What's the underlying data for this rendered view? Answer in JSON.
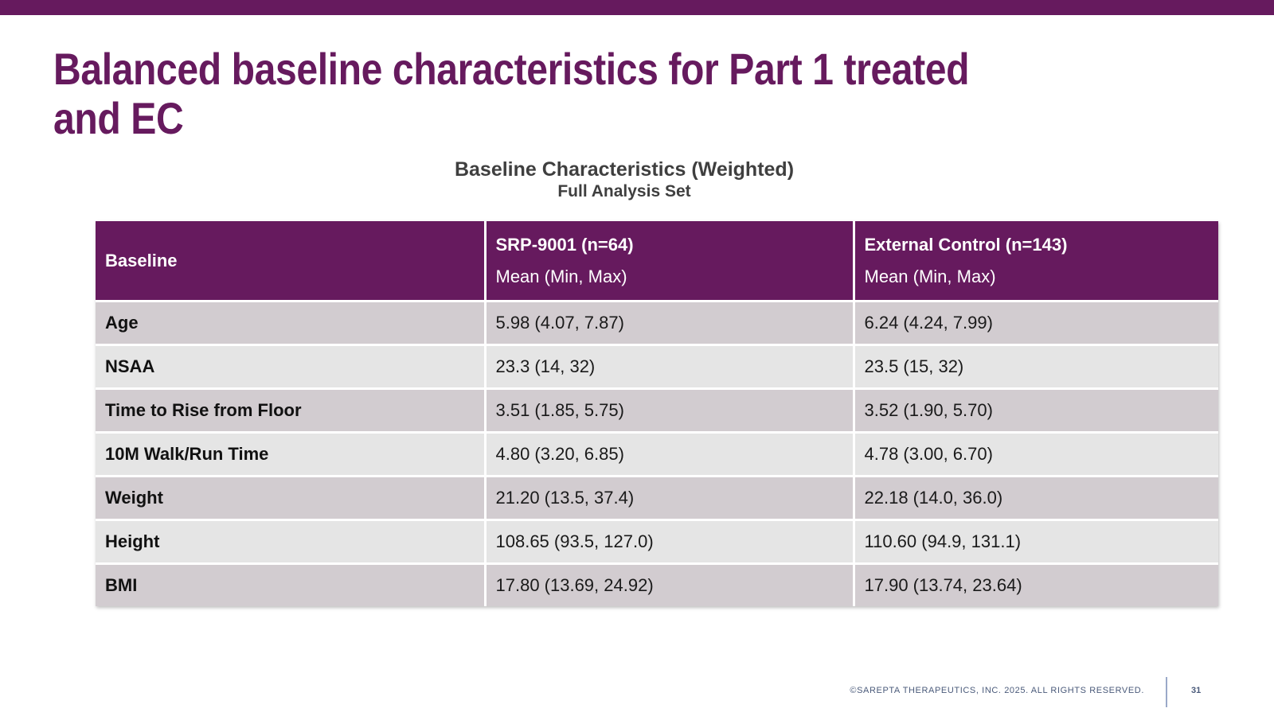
{
  "slide": {
    "title": "Balanced baseline characteristics for Part 1 treated and EC",
    "table_title": "Baseline Characteristics (Weighted)",
    "table_subtitle": "Full Analysis Set"
  },
  "colors": {
    "brand_purple": "#661a5e",
    "row_odd": "#d2ccd0",
    "row_even": "#e5e5e5"
  },
  "table": {
    "headers": {
      "col1": "Baseline",
      "col2_title": "SRP-9001 (n=64)",
      "col2_sub": "Mean (Min, Max)",
      "col3_title": "External Control (n=143)",
      "col3_sub": "Mean (Min, Max)"
    },
    "rows": [
      {
        "label": "Age",
        "srp": "5.98 (4.07, 7.87)",
        "ec": "6.24 (4.24, 7.99)"
      },
      {
        "label": "NSAA",
        "srp": "23.3 (14, 32)",
        "ec": "23.5 (15, 32)"
      },
      {
        "label": "Time to Rise from Floor",
        "srp": "3.51 (1.85, 5.75)",
        "ec": "3.52 (1.90, 5.70)"
      },
      {
        "label": "10M Walk/Run Time",
        "srp": "4.80 (3.20, 6.85)",
        "ec": "4.78 (3.00, 6.70)"
      },
      {
        "label": "Weight",
        "srp": "21.20 (13.5, 37.4)",
        "ec": "22.18 (14.0, 36.0)"
      },
      {
        "label": "Height",
        "srp": "108.65 (93.5, 127.0)",
        "ec": "110.60 (94.9, 131.1)"
      },
      {
        "label": "BMI",
        "srp": "17.80 (13.69, 24.92)",
        "ec": "17.90 (13.74, 23.64)"
      }
    ]
  },
  "footer": {
    "copyright": "©SAREPTA THERAPEUTICS, INC. 2025.  ALL RIGHTS RESERVED.",
    "page_number": "31"
  }
}
